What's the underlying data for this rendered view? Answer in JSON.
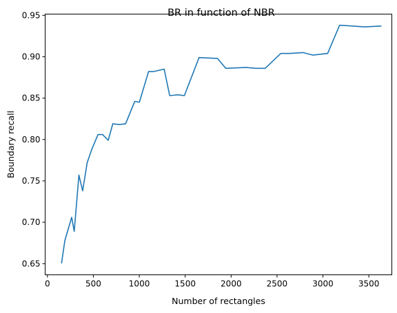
{
  "chart_data": {
    "type": "line",
    "title": "BR in function of NBR",
    "xlabel": "Number of rectangles",
    "ylabel": "Boundary recall",
    "xlim": [
      -25,
      3750
    ],
    "ylim": [
      0.6365,
      0.9515
    ],
    "xticks": [
      0,
      500,
      1000,
      1500,
      2000,
      2500,
      3000,
      3500
    ],
    "xtick_labels": [
      "0",
      "500",
      "1000",
      "1500",
      "2000",
      "2500",
      "3000",
      "3500"
    ],
    "yticks": [
      0.65,
      0.7,
      0.75,
      0.8,
      0.85,
      0.9,
      0.95
    ],
    "ytick_labels": [
      "0.65",
      "0.70",
      "0.75",
      "0.80",
      "0.85",
      "0.90",
      "0.95"
    ],
    "grid": false,
    "line_color": "#1f77b4",
    "series": [
      {
        "x": [
          154,
          190,
          264,
          292,
          343,
          383,
          433,
          482,
          551,
          601,
          662,
          712,
          782,
          851,
          951,
          1001,
          1101,
          1151,
          1271,
          1331,
          1421,
          1491,
          1651,
          1851,
          1941,
          2161,
          2271,
          2371,
          2541,
          2641,
          2781,
          2891,
          3051,
          3181,
          3331,
          3451,
          3631
        ],
        "y": [
          0.651,
          0.678,
          0.706,
          0.689,
          0.757,
          0.738,
          0.772,
          0.788,
          0.806,
          0.806,
          0.799,
          0.819,
          0.818,
          0.819,
          0.846,
          0.845,
          0.882,
          0.882,
          0.885,
          0.853,
          0.854,
          0.853,
          0.899,
          0.898,
          0.886,
          0.887,
          0.886,
          0.886,
          0.904,
          0.904,
          0.905,
          0.902,
          0.904,
          0.938,
          0.937,
          0.936,
          0.937
        ]
      }
    ]
  }
}
